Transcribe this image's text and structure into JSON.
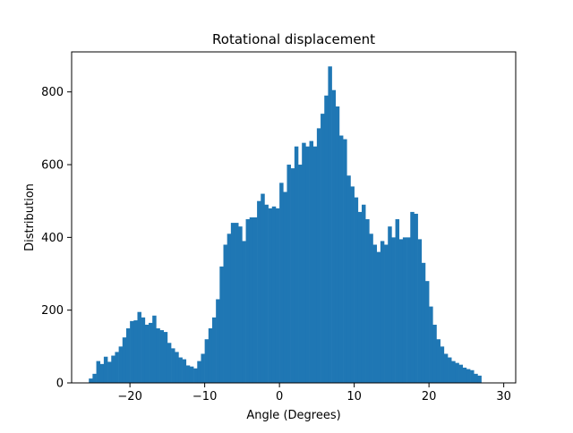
{
  "chart_data": {
    "type": "bar",
    "title": "Rotational displacement",
    "xlabel": "Angle (Degrees)",
    "ylabel": "Distribution",
    "xlim": [
      -27.8,
      31.6
    ],
    "ylim": [
      0,
      910
    ],
    "xticks": [
      -20,
      -10,
      0,
      10,
      20,
      30
    ],
    "xtick_labels": [
      "−20",
      "−10",
      "0",
      "10",
      "20",
      "30"
    ],
    "yticks": [
      0,
      200,
      400,
      600,
      800
    ],
    "ytick_labels": [
      "0",
      "200",
      "400",
      "600",
      "800"
    ],
    "grid": false,
    "legend": "none",
    "bar_color": "#1f77b4",
    "bin_width": 0.5,
    "x_start": -25.5,
    "values": [
      12,
      25,
      60,
      52,
      72,
      58,
      75,
      85,
      100,
      125,
      150,
      170,
      172,
      195,
      180,
      160,
      165,
      185,
      150,
      145,
      140,
      110,
      95,
      85,
      70,
      65,
      48,
      45,
      40,
      60,
      80,
      120,
      150,
      180,
      230,
      320,
      380,
      410,
      440,
      440,
      430,
      390,
      450,
      455,
      455,
      500,
      520,
      490,
      480,
      485,
      480,
      550,
      525,
      600,
      590,
      650,
      600,
      660,
      650,
      665,
      650,
      700,
      740,
      790,
      870,
      805,
      760,
      680,
      670,
      570,
      540,
      510,
      470,
      490,
      450,
      410,
      380,
      360,
      390,
      380,
      430,
      400,
      450,
      395,
      400,
      400,
      470,
      465,
      395,
      330,
      280,
      210,
      160,
      120,
      100,
      80,
      70,
      60,
      55,
      50,
      42,
      38,
      35,
      25,
      20
    ]
  }
}
